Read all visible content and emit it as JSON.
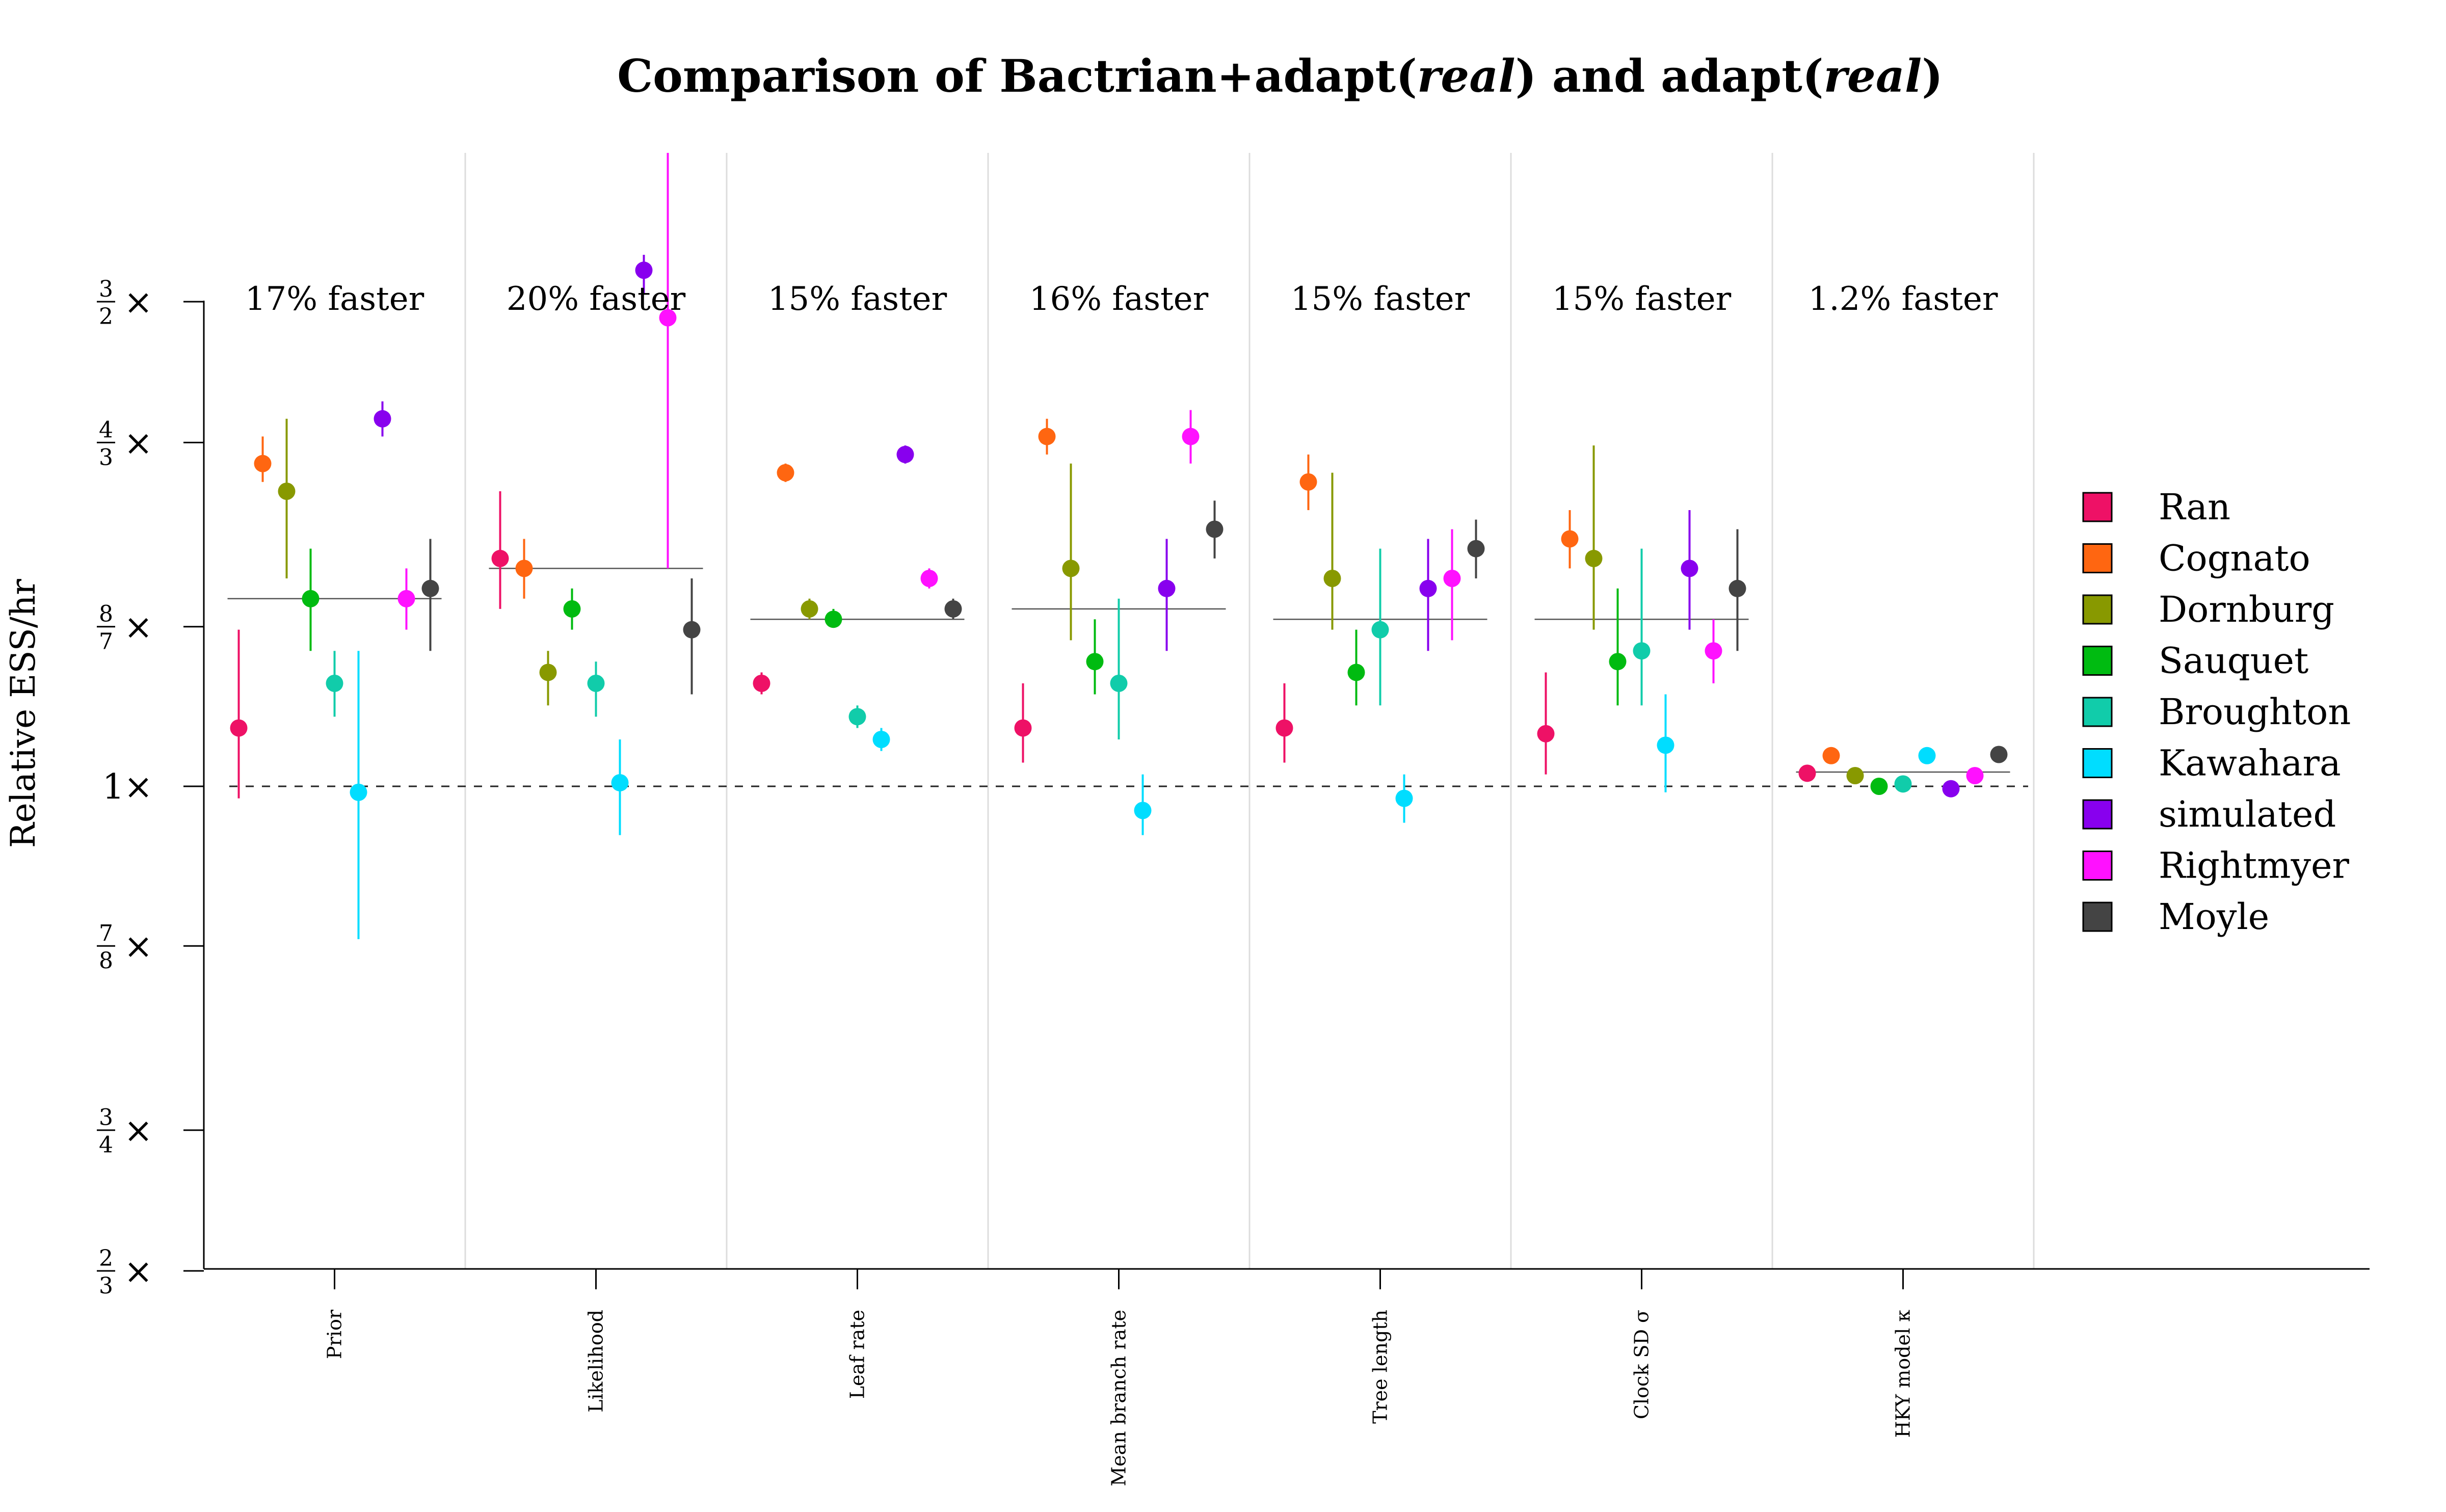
{
  "chart_data": {
    "type": "scatter",
    "title_parts": [
      {
        "text": "Comparison of Bactrian+adapt(",
        "italic": false
      },
      {
        "text": "real",
        "italic": true
      },
      {
        "text": ") and adapt(",
        "italic": false
      },
      {
        "text": "real",
        "italic": true
      },
      {
        "text": ")",
        "italic": false
      }
    ],
    "ylabel": "Relative ESS/hr",
    "y_scale": "log",
    "ylim": [
      0.6667,
      1.75
    ],
    "yticks": [
      {
        "value": 0.6667,
        "kind": "frac",
        "num": "2",
        "den": "3",
        "label": "2/3×"
      },
      {
        "value": 0.75,
        "kind": "frac",
        "num": "3",
        "den": "4",
        "label": "3/4×"
      },
      {
        "value": 0.875,
        "kind": "frac",
        "num": "7",
        "den": "8",
        "label": "7/8×"
      },
      {
        "value": 1.0,
        "kind": "int",
        "text": "1",
        "label": "1×"
      },
      {
        "value": 1.1429,
        "kind": "frac",
        "num": "8",
        "den": "7",
        "label": "8/7×"
      },
      {
        "value": 1.3333,
        "kind": "frac",
        "num": "4",
        "den": "3",
        "label": "4/3×"
      },
      {
        "value": 1.5,
        "kind": "frac",
        "num": "3",
        "den": "2",
        "label": "3/2×"
      }
    ],
    "times_symbol": "×",
    "reference_line": 1.0,
    "categories": [
      "Prior",
      "Likelihood",
      "Leaf rate",
      "Mean branch rate",
      "Tree length",
      "Clock SD σ",
      "HKY model κ"
    ],
    "annotations": [
      "17% faster",
      "20% faster",
      "15% faster",
      "16% faster",
      "15% faster",
      "15% faster",
      "1.2% faster"
    ],
    "group_means": [
      1.17,
      1.2,
      1.15,
      1.16,
      1.15,
      1.15,
      1.012
    ],
    "legend_placement": "right",
    "series": [
      {
        "name": "Ran",
        "color": "#ee1166",
        "values": [
          1.05,
          1.21,
          1.09,
          1.05,
          1.05,
          1.045,
          1.011
        ],
        "lo": [
          0.99,
          1.16,
          1.08,
          1.02,
          1.02,
          1.01,
          1.004
        ],
        "hi": [
          1.14,
          1.28,
          1.1,
          1.09,
          1.09,
          1.1,
          1.016
        ]
      },
      {
        "name": "Cognato",
        "color": "#ff6611",
        "values": [
          1.31,
          1.2,
          1.3,
          1.34,
          1.29,
          1.23,
          1.026
        ],
        "lo": [
          1.29,
          1.17,
          1.29,
          1.32,
          1.26,
          1.2,
          1.02
        ],
        "hi": [
          1.34,
          1.23,
          1.31,
          1.36,
          1.32,
          1.26,
          1.032
        ]
      },
      {
        "name": "Dornburg",
        "color": "#889900",
        "values": [
          1.28,
          1.1,
          1.16,
          1.2,
          1.19,
          1.21,
          1.009
        ],
        "lo": [
          1.19,
          1.07,
          1.15,
          1.13,
          1.14,
          1.14,
          1.006
        ],
        "hi": [
          1.36,
          1.12,
          1.17,
          1.31,
          1.3,
          1.33,
          1.013
        ]
      },
      {
        "name": "Sauquet",
        "color": "#00bb11",
        "values": [
          1.17,
          1.16,
          1.15,
          1.11,
          1.1,
          1.11,
          1.0
        ],
        "lo": [
          1.12,
          1.14,
          1.15,
          1.08,
          1.07,
          1.07,
          0.997
        ],
        "hi": [
          1.22,
          1.18,
          1.16,
          1.15,
          1.14,
          1.18,
          1.003
        ]
      },
      {
        "name": "Broughton",
        "color": "#11ccaa",
        "values": [
          1.09,
          1.09,
          1.06,
          1.09,
          1.14,
          1.12,
          1.002
        ],
        "lo": [
          1.06,
          1.06,
          1.05,
          1.04,
          1.07,
          1.07,
          0.999
        ],
        "hi": [
          1.12,
          1.11,
          1.07,
          1.17,
          1.22,
          1.22,
          1.004
        ]
      },
      {
        "name": "Kawahara",
        "color": "#00ddff",
        "values": [
          0.995,
          1.003,
          1.04,
          0.98,
          0.99,
          1.035,
          1.026
        ],
        "lo": [
          0.88,
          0.96,
          1.03,
          0.96,
          0.97,
          0.995,
          1.02
        ],
        "hi": [
          1.12,
          1.04,
          1.05,
          1.01,
          1.01,
          1.08,
          1.032
        ]
      },
      {
        "name": "simulated",
        "color": "#8800ee",
        "values": [
          1.36,
          1.54,
          1.32,
          1.18,
          1.18,
          1.2,
          0.998
        ],
        "lo": [
          1.34,
          1.51,
          1.31,
          1.12,
          1.12,
          1.14,
          0.992
        ],
        "hi": [
          1.38,
          1.56,
          1.33,
          1.23,
          1.23,
          1.26,
          1.004
        ]
      },
      {
        "name": "Rightmyer",
        "color": "#ff11ff",
        "values": [
          1.17,
          1.48,
          1.19,
          1.34,
          1.19,
          1.12,
          1.009
        ],
        "lo": [
          1.14,
          1.2,
          1.18,
          1.31,
          1.13,
          1.09,
          1.006
        ],
        "hi": [
          1.2,
          1.83,
          1.2,
          1.37,
          1.24,
          1.15,
          1.012
        ]
      },
      {
        "name": "Moyle",
        "color": "#444444",
        "values": [
          1.18,
          1.14,
          1.16,
          1.24,
          1.22,
          1.18,
          1.027
        ],
        "lo": [
          1.12,
          1.08,
          1.15,
          1.21,
          1.19,
          1.12,
          1.022
        ],
        "hi": [
          1.23,
          1.19,
          1.17,
          1.27,
          1.25,
          1.24,
          1.033
        ]
      }
    ]
  }
}
